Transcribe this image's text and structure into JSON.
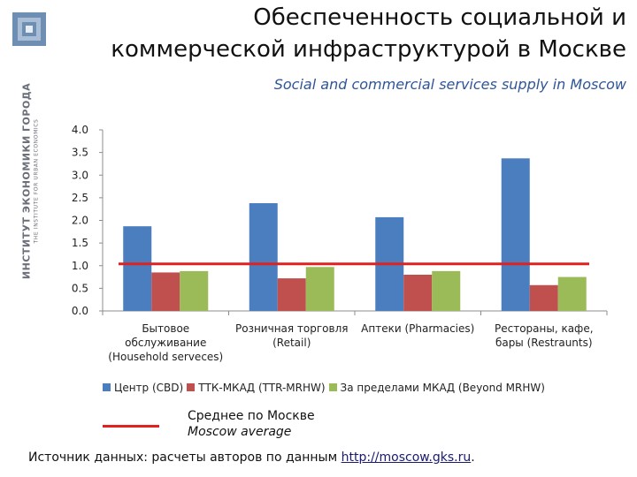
{
  "org": {
    "name_ru": "ИНСТИТУТ ЭКОНОМИКИ ГОРОДА",
    "name_en": "THE INSTITUTE FOR URBAN ECONOMICS"
  },
  "title_line1": "Обеспеченность социальной и",
  "title_line2": "коммерческой инфраструктурой в Москве",
  "subtitle": "Social and commercial services supply in Moscow",
  "chart_data": {
    "type": "bar",
    "categories": [
      [
        "Бытовое",
        "обслуживание",
        "(Household serveces)"
      ],
      [
        "Розничная торговля",
        "(Retail)"
      ],
      [
        "Аптеки (Pharmacies)"
      ],
      [
        "Рестораны, кафе,",
        "бары (Restraunts)"
      ]
    ],
    "series": [
      {
        "name": "Центр (CBD)",
        "color": "#4a7ebf",
        "values": [
          1.87,
          2.38,
          2.07,
          3.37
        ]
      },
      {
        "name": "ТТК-МКАД (TTR-MRHW)",
        "color": "#c0504d",
        "values": [
          0.85,
          0.72,
          0.8,
          0.57
        ]
      },
      {
        "name": "За пределами МКАД (Beyond MRHW)",
        "color": "#9bbb59",
        "values": [
          0.88,
          0.97,
          0.88,
          0.75
        ]
      }
    ],
    "reference_line": {
      "value": 1.04,
      "color": "#e0211f"
    },
    "yticks": [
      "0.0",
      "0.5",
      "1.0",
      "1.5",
      "2.0",
      "2.5",
      "3.0",
      "3.5",
      "4.0"
    ],
    "ylim": [
      0,
      4.0
    ],
    "grid": false,
    "legend": "bottom"
  },
  "average": {
    "ru": "Среднее по Москве",
    "en": "Moscow average"
  },
  "source": {
    "prefix": "Источник данных: расчеты авторов по данным ",
    "link": "http://moscow.gks.ru",
    "suffix": "."
  }
}
